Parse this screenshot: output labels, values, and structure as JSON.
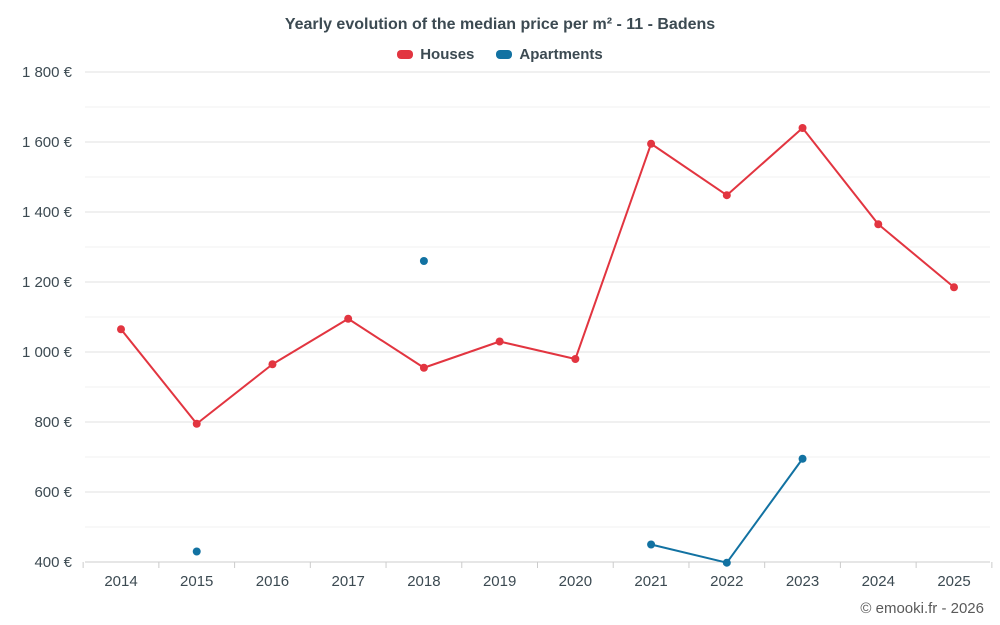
{
  "footer": {
    "credit": "© emooki.fr - 2026"
  },
  "chart_data": {
    "type": "line",
    "title": "Yearly evolution of the median price per m² - 11 - Badens",
    "categories": [
      "2014",
      "2015",
      "2016",
      "2017",
      "2018",
      "2019",
      "2020",
      "2021",
      "2022",
      "2023",
      "2024",
      "2025"
    ],
    "series": [
      {
        "name": "Houses",
        "color": "#e23540",
        "values": [
          1065,
          795,
          965,
          1095,
          955,
          1030,
          980,
          1595,
          1448,
          1640,
          1365,
          1185
        ]
      },
      {
        "name": "Apartments",
        "color": "#1272a2",
        "values": [
          null,
          430,
          null,
          null,
          1260,
          null,
          null,
          450,
          398,
          695,
          null,
          null
        ]
      }
    ],
    "ylim": [
      400,
      1800
    ],
    "ytick_values": [
      400,
      600,
      800,
      1000,
      1200,
      1400,
      1600,
      1800
    ],
    "ytick_labels": [
      "400 €",
      "600 €",
      "800 €",
      "1 000 €",
      "1 200 €",
      "1 400 €",
      "1 600 €",
      "1 800 €"
    ],
    "minor_grid_step": 100,
    "grid": "horizontal",
    "legend_position": "top",
    "xlabel": "",
    "ylabel": ""
  }
}
